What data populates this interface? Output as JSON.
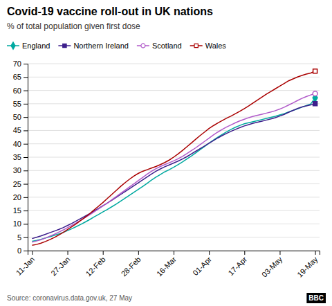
{
  "chart_data": {
    "type": "line",
    "title": "Covid-19 vaccine roll-out in UK nations",
    "subtitle": "% of total population given first dose",
    "source": "Source: coronavirus.data.gov.uk, 27 May",
    "annotations": [
      "BBC"
    ],
    "x": [
      0,
      2,
      4,
      6,
      8,
      10,
      12,
      14,
      16,
      18,
      20,
      22,
      24,
      26,
      28,
      30,
      32,
      34,
      36,
      38,
      40,
      42,
      44,
      46,
      48,
      50,
      52,
      54,
      56,
      58,
      60,
      62,
      64,
      66,
      68,
      70,
      72,
      74,
      76,
      78,
      80,
      82,
      84,
      86,
      88,
      90,
      92,
      94,
      96,
      98,
      100,
      102,
      104,
      106,
      108,
      110,
      112,
      114,
      116,
      118,
      120,
      122,
      124,
      126,
      128
    ],
    "xlim": [
      -2,
      130
    ],
    "xticks": [
      {
        "value": 0,
        "label": "11-Jan"
      },
      {
        "value": 16,
        "label": "27-Jan"
      },
      {
        "value": 32,
        "label": "12-Feb"
      },
      {
        "value": 48,
        "label": "28-Feb"
      },
      {
        "value": 64,
        "label": "16-Mar"
      },
      {
        "value": 80,
        "label": "01-Apr"
      },
      {
        "value": 96,
        "label": "17-Apr"
      },
      {
        "value": 112,
        "label": "03-May"
      },
      {
        "value": 128,
        "label": "19-May"
      }
    ],
    "ylim": [
      0,
      70
    ],
    "yticks": [
      0,
      5,
      10,
      15,
      20,
      25,
      30,
      35,
      40,
      45,
      50,
      55,
      60,
      65,
      70
    ],
    "grid": true,
    "legend": "upper left",
    "series": [
      {
        "name": "England",
        "color": "#00a9a0",
        "marker": "diamond",
        "values": [
          3.5,
          3.8,
          4.2,
          4.7,
          5.2,
          5.7,
          6.2,
          6.8,
          7.5,
          8.2,
          9.0,
          9.8,
          10.7,
          11.6,
          12.6,
          13.5,
          14.5,
          15.4,
          16.4,
          17.4,
          18.5,
          19.6,
          20.7,
          21.8,
          22.9,
          24.0,
          25.2,
          26.4,
          27.5,
          28.5,
          29.5,
          30.3,
          31.2,
          32.2,
          33.2,
          34.3,
          35.4,
          36.6,
          37.8,
          39.0,
          40.2,
          41.4,
          42.5,
          43.5,
          44.5,
          45.4,
          46.2,
          46.9,
          47.5,
          47.9,
          48.3,
          48.7,
          49.1,
          49.5,
          49.9,
          50.3,
          50.8,
          51.3,
          51.9,
          52.5,
          53.1,
          53.7,
          54.3,
          54.9,
          57.2
        ]
      },
      {
        "name": "Northern Ireland",
        "color": "#3d1f8c",
        "marker": "square",
        "values": [
          4.5,
          5.0,
          5.5,
          6.1,
          6.7,
          7.3,
          7.9,
          8.6,
          9.4,
          10.2,
          11.1,
          12.0,
          12.9,
          13.8,
          14.8,
          15.8,
          16.8,
          17.8,
          18.8,
          19.9,
          21.0,
          22.1,
          23.2,
          24.3,
          25.4,
          26.5,
          27.6,
          28.7,
          29.7,
          30.6,
          31.4,
          32.1,
          32.8,
          33.5,
          34.3,
          35.2,
          36.2,
          37.2,
          38.2,
          39.2,
          40.2,
          41.2,
          42.2,
          43.1,
          43.9,
          44.7,
          45.4,
          46.1,
          46.7,
          47.2,
          47.7,
          48.1,
          48.5,
          48.9,
          49.3,
          49.8,
          50.4,
          51.0,
          51.8,
          52.5,
          53.2,
          53.8,
          54.2,
          54.6,
          55.0
        ]
      },
      {
        "name": "Scotland",
        "color": "#b059c9",
        "marker": "circle-open",
        "values": [
          3.2,
          3.6,
          4.1,
          4.7,
          5.4,
          6.1,
          6.9,
          7.7,
          8.6,
          9.5,
          10.4,
          11.4,
          12.4,
          13.4,
          14.5,
          15.6,
          16.7,
          17.8,
          19.0,
          20.2,
          21.4,
          22.6,
          23.8,
          25.0,
          26.2,
          27.4,
          28.6,
          29.7,
          30.7,
          31.5,
          32.2,
          32.9,
          33.6,
          34.4,
          35.3,
          36.3,
          37.4,
          38.5,
          39.7,
          40.9,
          42.1,
          43.3,
          44.4,
          45.4,
          46.3,
          47.1,
          47.9,
          48.6,
          49.2,
          49.8,
          50.3,
          50.7,
          51.1,
          51.5,
          51.9,
          52.4,
          53.0,
          53.7,
          54.5,
          55.3,
          56.2,
          57.0,
          57.7,
          58.3,
          58.8
        ]
      },
      {
        "name": "Wales",
        "color": "#aa0000",
        "marker": "square-open",
        "values": [
          2.0,
          2.3,
          2.8,
          3.4,
          4.1,
          4.9,
          5.8,
          6.8,
          7.9,
          9.0,
          10.1,
          11.3,
          12.5,
          13.8,
          15.2,
          16.6,
          18.0,
          19.5,
          21.0,
          22.5,
          24.0,
          25.4,
          26.7,
          27.9,
          28.9,
          29.7,
          30.3,
          30.9,
          31.5,
          32.2,
          33.0,
          33.9,
          35.0,
          36.2,
          37.5,
          38.9,
          40.3,
          41.7,
          43.1,
          44.4,
          45.7,
          46.8,
          47.8,
          48.7,
          49.6,
          50.4,
          51.3,
          52.2,
          53.2,
          54.2,
          55.3,
          56.4,
          57.5,
          58.6,
          59.6,
          60.6,
          61.6,
          62.6,
          63.6,
          64.3,
          65.0,
          65.6,
          66.1,
          66.5,
          67.2
        ]
      }
    ]
  }
}
